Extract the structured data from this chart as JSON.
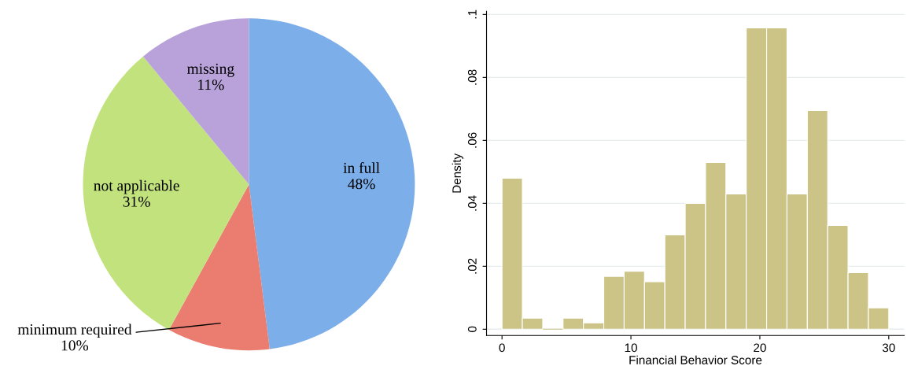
{
  "chart_data": [
    {
      "type": "pie",
      "categories": [
        "in full",
        "minimum required",
        "not applicable",
        "missing"
      ],
      "values": [
        48,
        10,
        31,
        11
      ],
      "colors": [
        "#7cafea",
        "#ea7d70",
        "#c2e27e",
        "#b9a2da"
      ],
      "value_labels": [
        "48%",
        "10%",
        "31%",
        "11%"
      ],
      "data_labels": true
    },
    {
      "type": "histogram",
      "bins": [
        0,
        1.579,
        3.158,
        4.737,
        6.316,
        7.895,
        9.474,
        11.053,
        12.632,
        14.211,
        15.789,
        17.368,
        18.947,
        20.526,
        22.105,
        23.684,
        25.263,
        26.842,
        28.421,
        30
      ],
      "values": [
        0.048,
        0.0035,
        0,
        0.0035,
        0.002,
        0.0168,
        0.0184,
        0.0151,
        0.03,
        0.04,
        0.053,
        0.043,
        0.0957,
        0.0957,
        0.043,
        0.0695,
        0.033,
        0.018,
        0.0068
      ],
      "color": "#ccc386",
      "xlabel": "Financial Behavior Score",
      "ylabel": "Density",
      "xlim": [
        -1.2,
        31.2
      ],
      "ylim": [
        -0.002,
        0.101
      ],
      "xticks": [
        0,
        10,
        20,
        30
      ],
      "yticks": [
        0,
        {
          "value": 0.02,
          "label": ".02"
        },
        {
          "value": 0.04,
          "label": ".04"
        },
        {
          "value": 0.06,
          "label": ".06"
        },
        {
          "value": 0.08,
          "label": ".08"
        },
        {
          "value": 0.1,
          "label": ".1"
        }
      ],
      "grid": "y"
    }
  ]
}
